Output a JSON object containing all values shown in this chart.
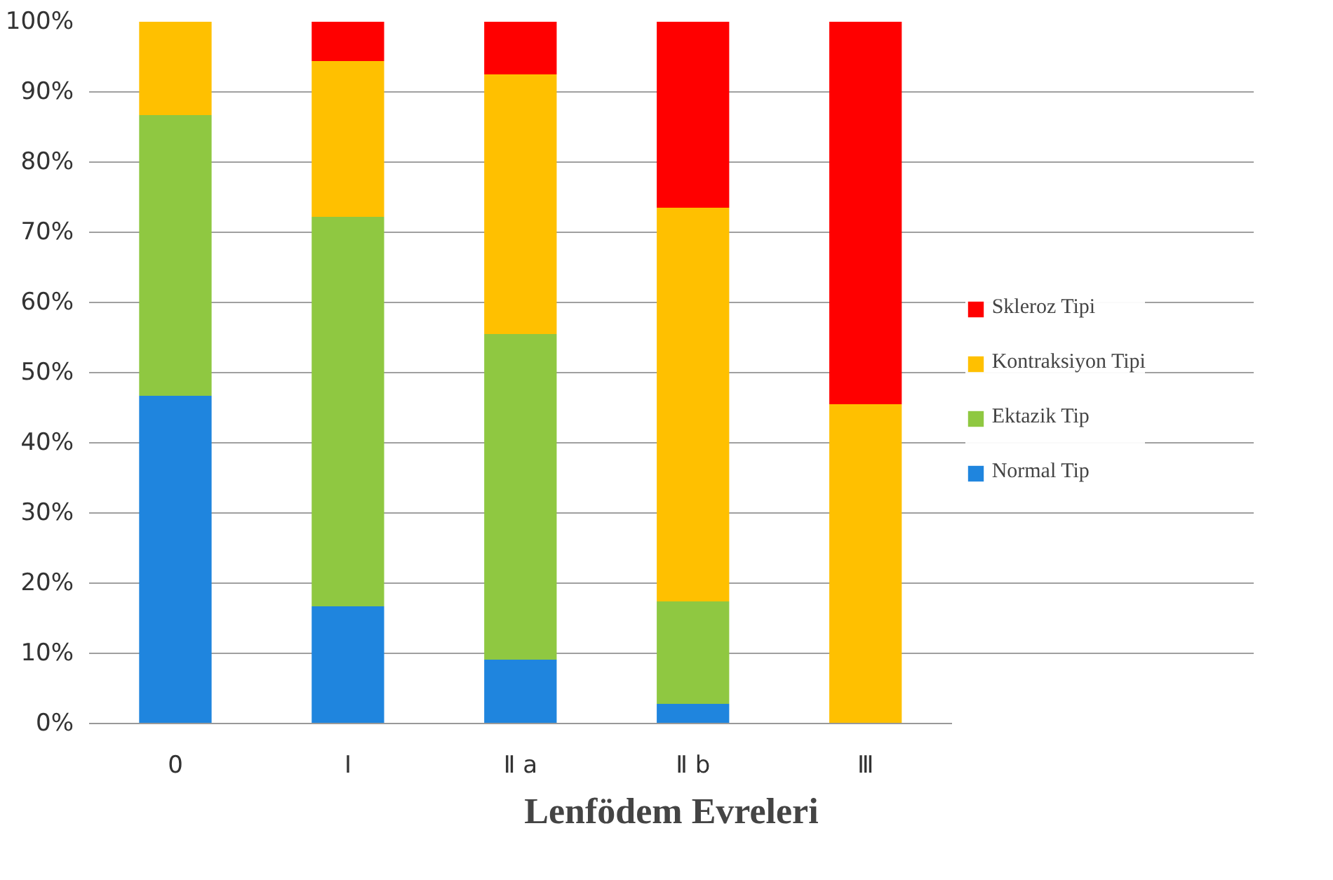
{
  "chart_data": {
    "type": "bar",
    "stacked": true,
    "xlabel": "Lenfödem Evreleri",
    "categories": [
      "0",
      "Ⅰ",
      "Ⅱ a",
      "Ⅱ b",
      "Ⅲ"
    ],
    "series": [
      {
        "name": "Normal Tip",
        "color": "#1f85de",
        "values": [
          46.7,
          16.7,
          9.1,
          2.8,
          0
        ]
      },
      {
        "name": "Ektazik Tip",
        "color": "#8fc841",
        "values": [
          40.0,
          55.5,
          46.4,
          14.6,
          0
        ]
      },
      {
        "name": "Kontraksiyon Tipi",
        "color": "#ffc000",
        "values": [
          13.3,
          22.2,
          37.0,
          56.1,
          45.5
        ]
      },
      {
        "name": "Skleroz Tipi",
        "color": "#ff0000",
        "values": [
          0,
          5.6,
          7.5,
          26.5,
          54.5
        ]
      }
    ],
    "ylim": [
      0,
      100
    ],
    "yticks": [
      {
        "value": 0,
        "label": "0%"
      },
      {
        "value": 10,
        "label": "10%"
      },
      {
        "value": 20,
        "label": "20%"
      },
      {
        "value": 30,
        "label": "30%"
      },
      {
        "value": 40,
        "label": "40%"
      },
      {
        "value": 50,
        "label": "50%"
      },
      {
        "value": 60,
        "label": "60%"
      },
      {
        "value": 70,
        "label": "70%"
      },
      {
        "value": 80,
        "label": "80%"
      },
      {
        "value": 90,
        "label": "90%"
      },
      {
        "value": 100,
        "label": "100%"
      }
    ],
    "grid": "y",
    "legend": "right"
  }
}
